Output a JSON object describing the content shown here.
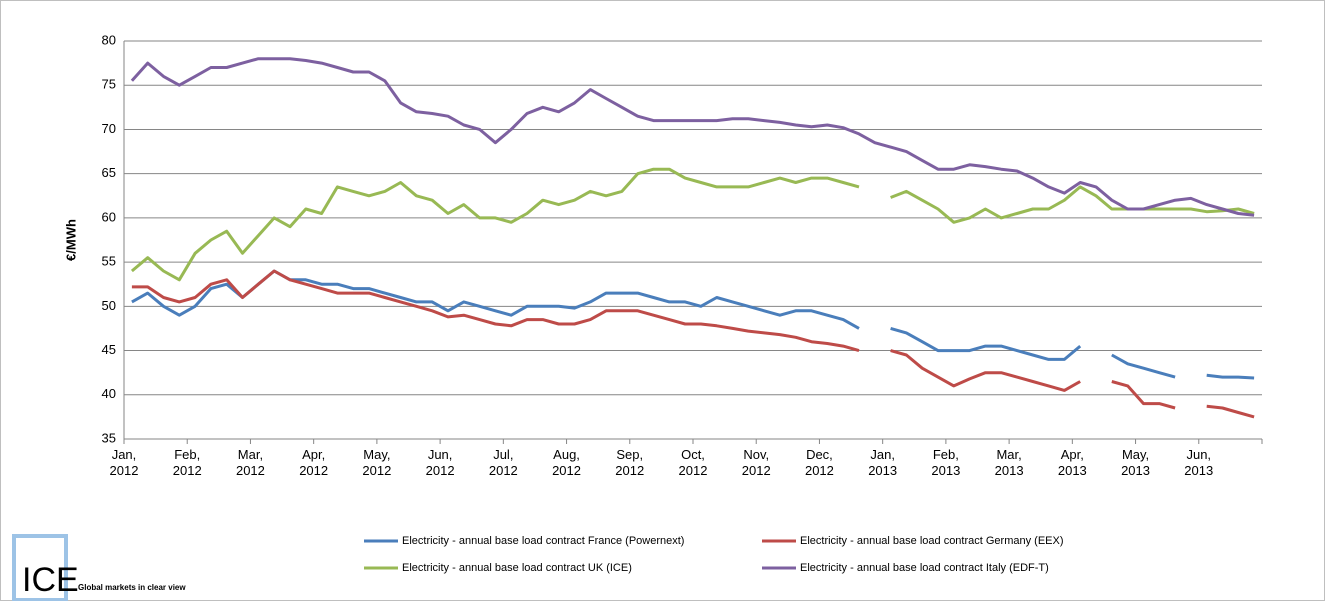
{
  "chart_data": {
    "type": "line",
    "ylabel": "€/MWh",
    "ylim": [
      35,
      80
    ],
    "yticks": [
      35,
      40,
      45,
      50,
      55,
      60,
      65,
      70,
      75,
      80
    ],
    "grid": true,
    "categories": [
      "Jan, 2012",
      null,
      null,
      null,
      "Feb, 2012",
      null,
      null,
      null,
      "Mar, 2012",
      null,
      null,
      null,
      "Apr, 2012",
      null,
      null,
      null,
      "May, 2012",
      null,
      null,
      null,
      "Jun, 2012",
      null,
      null,
      null,
      "Jul, 2012",
      null,
      null,
      null,
      "Aug, 2012",
      null,
      null,
      null,
      "Sep, 2012",
      null,
      null,
      null,
      "Oct, 2012",
      null,
      null,
      null,
      "Nov, 2012",
      null,
      null,
      null,
      "Dec, 2012",
      null,
      null,
      null,
      "Jan, 2013",
      null,
      null,
      null,
      "Feb, 2013",
      null,
      null,
      null,
      "Mar, 2013",
      null,
      null,
      null,
      "Apr, 2013",
      null,
      null,
      null,
      "May, 2013",
      null,
      null,
      null,
      "Jun, 2013",
      null,
      null,
      null
    ],
    "legend": "bottom",
    "series": [
      {
        "name": "Electricity - annual base load contract France (Powernext)",
        "color": "#4a7ebb",
        "values": [
          50.5,
          51.5,
          50,
          49,
          50,
          52,
          52.5,
          51,
          52.5,
          54,
          53,
          53,
          52.5,
          52.5,
          52,
          52,
          51.5,
          51,
          50.5,
          50.5,
          49.5,
          50.5,
          50,
          49.5,
          49,
          50,
          50,
          50,
          49.8,
          50.5,
          51.5,
          51.5,
          51.5,
          51,
          50.5,
          50.5,
          50,
          51,
          50.5,
          50,
          49.5,
          49,
          49.5,
          49.5,
          49,
          48.5,
          47.5,
          null,
          47.5,
          47,
          46,
          45,
          45,
          45,
          45.5,
          45.5,
          45,
          44.5,
          44,
          44,
          45.5,
          null,
          44.5,
          43.5,
          43,
          42.5,
          42,
          null,
          42.2,
          42,
          42,
          41.9
        ]
      },
      {
        "name": "Electricity - annual base load contract Germany (EEX)",
        "color": "#be4b48",
        "values": [
          52.2,
          52.2,
          51,
          50.5,
          51,
          52.5,
          53,
          51,
          52.5,
          54,
          53,
          52.5,
          52,
          51.5,
          51.5,
          51.5,
          51,
          50.5,
          50,
          49.5,
          48.8,
          49,
          48.5,
          48,
          47.8,
          48.5,
          48.5,
          48,
          48,
          48.5,
          49.5,
          49.5,
          49.5,
          49,
          48.5,
          48,
          48,
          47.8,
          47.5,
          47.2,
          47,
          46.8,
          46.5,
          46,
          45.8,
          45.5,
          45,
          null,
          45,
          44.5,
          43,
          42,
          41,
          41.8,
          42.5,
          42.5,
          42,
          41.5,
          41,
          40.5,
          41.5,
          null,
          41.5,
          41,
          39,
          39,
          38.5,
          null,
          38.7,
          38.5,
          38,
          37.5
        ]
      },
      {
        "name": "Electricity - annual base load contract UK (ICE)",
        "color": "#98b954",
        "values": [
          54,
          55.5,
          54,
          53,
          56,
          57.5,
          58.5,
          56,
          58,
          60,
          59,
          61,
          60.5,
          63.5,
          63,
          62.5,
          63,
          64,
          62.5,
          62,
          60.5,
          61.5,
          60,
          60,
          59.5,
          60.5,
          62,
          61.5,
          62,
          63,
          62.5,
          63,
          65,
          65.5,
          65.5,
          64.5,
          64,
          63.5,
          63.5,
          63.5,
          64,
          64.5,
          64,
          64.5,
          64.5,
          64,
          63.5,
          null,
          62.3,
          63,
          62,
          61,
          59.5,
          60,
          61,
          60,
          60.5,
          61,
          61,
          62,
          63.5,
          62.5,
          61,
          61,
          61,
          61,
          61,
          61,
          60.7,
          60.8,
          61,
          60.5
        ]
      },
      {
        "name": "Electricity - annual base load contract Italy (EDF-T)",
        "color": "#7d60a0",
        "values": [
          75.5,
          77.5,
          76,
          75,
          76,
          77,
          77,
          77.5,
          78,
          78,
          78,
          77.8,
          77.5,
          77,
          76.5,
          76.5,
          75.5,
          73,
          72,
          71.8,
          71.5,
          70.5,
          70,
          68.5,
          70,
          71.8,
          72.5,
          72,
          73,
          74.5,
          73.5,
          72.5,
          71.5,
          71,
          71,
          71,
          71,
          71,
          71.2,
          71.2,
          71,
          70.8,
          70.5,
          70.3,
          70.5,
          70.2,
          69.5,
          68.5,
          68,
          67.5,
          66.5,
          65.5,
          65.5,
          66,
          65.8,
          65.5,
          65.3,
          64.5,
          63.5,
          62.8,
          64,
          63.5,
          62,
          61,
          61,
          61.5,
          62,
          62.2,
          61.5,
          61,
          60.5,
          60.3
        ]
      }
    ]
  },
  "logo": {
    "mark": "ICE",
    "tagline": "Global markets in clear view"
  }
}
